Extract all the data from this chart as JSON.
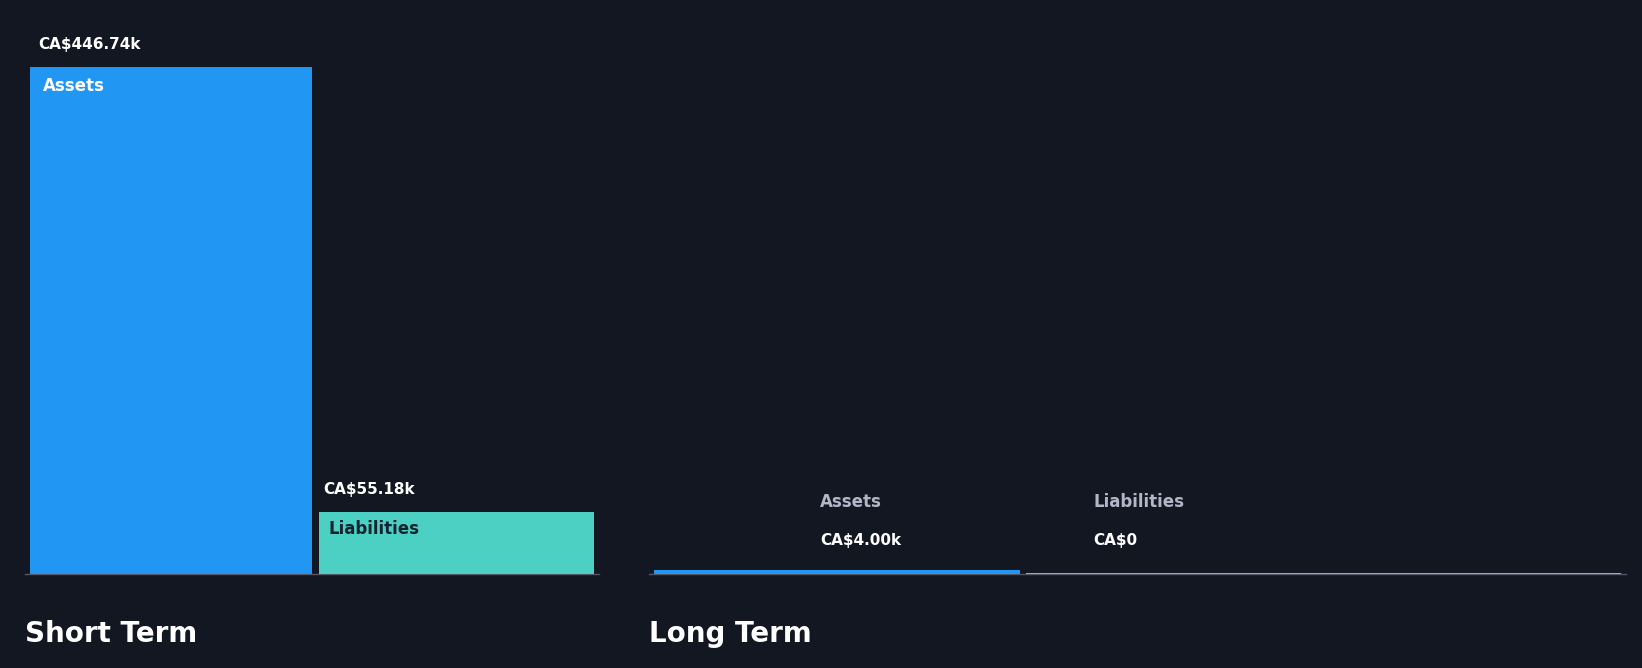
{
  "background_color": "#131722",
  "short_term_label": "Short Term",
  "long_term_label": "Long Term",
  "short_term_assets_value": 446.74,
  "short_term_assets_label": "CA$446.74k",
  "short_term_assets_inner_label": "Assets",
  "short_term_assets_color": "#2196f3",
  "short_term_liabilities_value": 55.18,
  "short_term_liabilities_label": "CA$55.18k",
  "short_term_liabilities_inner_label": "Liabilities",
  "short_term_liabilities_color": "#4dd0c4",
  "long_term_assets_value": 4.0,
  "long_term_assets_label": "CA$4.00k",
  "long_term_assets_inner_label": "Assets",
  "long_term_assets_color": "#2196f3",
  "long_term_liabilities_value": 0,
  "long_term_liabilities_label": "CA$0",
  "long_term_liabilities_inner_label": "Liabilities",
  "long_term_liabilities_color": "#4dd0c4",
  "text_color": "#ffffff",
  "label_color": "#b0b8c8",
  "value_color": "#ffffff",
  "baseline_color": "#555566",
  "bar_inner_label_fontsize": 12,
  "value_label_fontsize": 11,
  "section_header_fontsize": 20
}
